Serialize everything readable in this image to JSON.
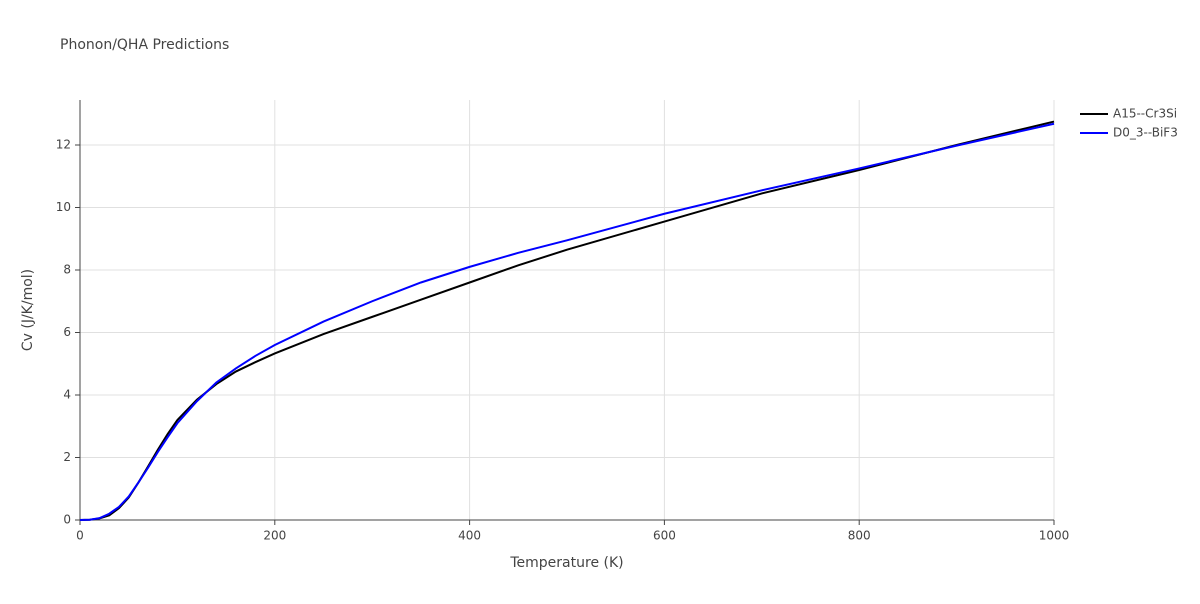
{
  "chart_data": {
    "type": "line",
    "title": "Phonon/QHA Predictions",
    "x_label": "Temperature (K)",
    "y_label": "Cv (J/K/mol)",
    "x": [
      0,
      10,
      20,
      30,
      40,
      50,
      60,
      70,
      80,
      90,
      100,
      120,
      140,
      160,
      180,
      200,
      250,
      300,
      350,
      400,
      450,
      500,
      600,
      700,
      800,
      900,
      1000
    ],
    "series": [
      {
        "name": "A15--Cr3Si",
        "color": "#000000",
        "values": [
          0,
          0.01,
          0.05,
          0.15,
          0.38,
          0.72,
          1.2,
          1.72,
          2.25,
          2.75,
          3.2,
          3.85,
          4.35,
          4.75,
          5.05,
          5.33,
          5.95,
          6.5,
          7.05,
          7.6,
          8.15,
          8.65,
          9.55,
          10.45,
          11.2,
          12.0,
          12.75
        ]
      },
      {
        "name": "D0_3--BiF3",
        "color": "#0000ff",
        "values": [
          0,
          0.01,
          0.06,
          0.2,
          0.42,
          0.75,
          1.2,
          1.68,
          2.18,
          2.65,
          3.1,
          3.8,
          4.4,
          4.85,
          5.25,
          5.6,
          6.35,
          7.0,
          7.6,
          8.1,
          8.55,
          8.95,
          9.8,
          10.55,
          11.25,
          11.98,
          12.68
        ]
      }
    ],
    "xlim": [
      0,
      1000
    ],
    "xticks": [
      0,
      200,
      400,
      600,
      800,
      1000
    ],
    "ylim": [
      0,
      13.44
    ],
    "yticks": [
      0,
      2,
      4,
      6,
      8,
      10,
      12
    ],
    "grid": true,
    "legend": "right"
  }
}
